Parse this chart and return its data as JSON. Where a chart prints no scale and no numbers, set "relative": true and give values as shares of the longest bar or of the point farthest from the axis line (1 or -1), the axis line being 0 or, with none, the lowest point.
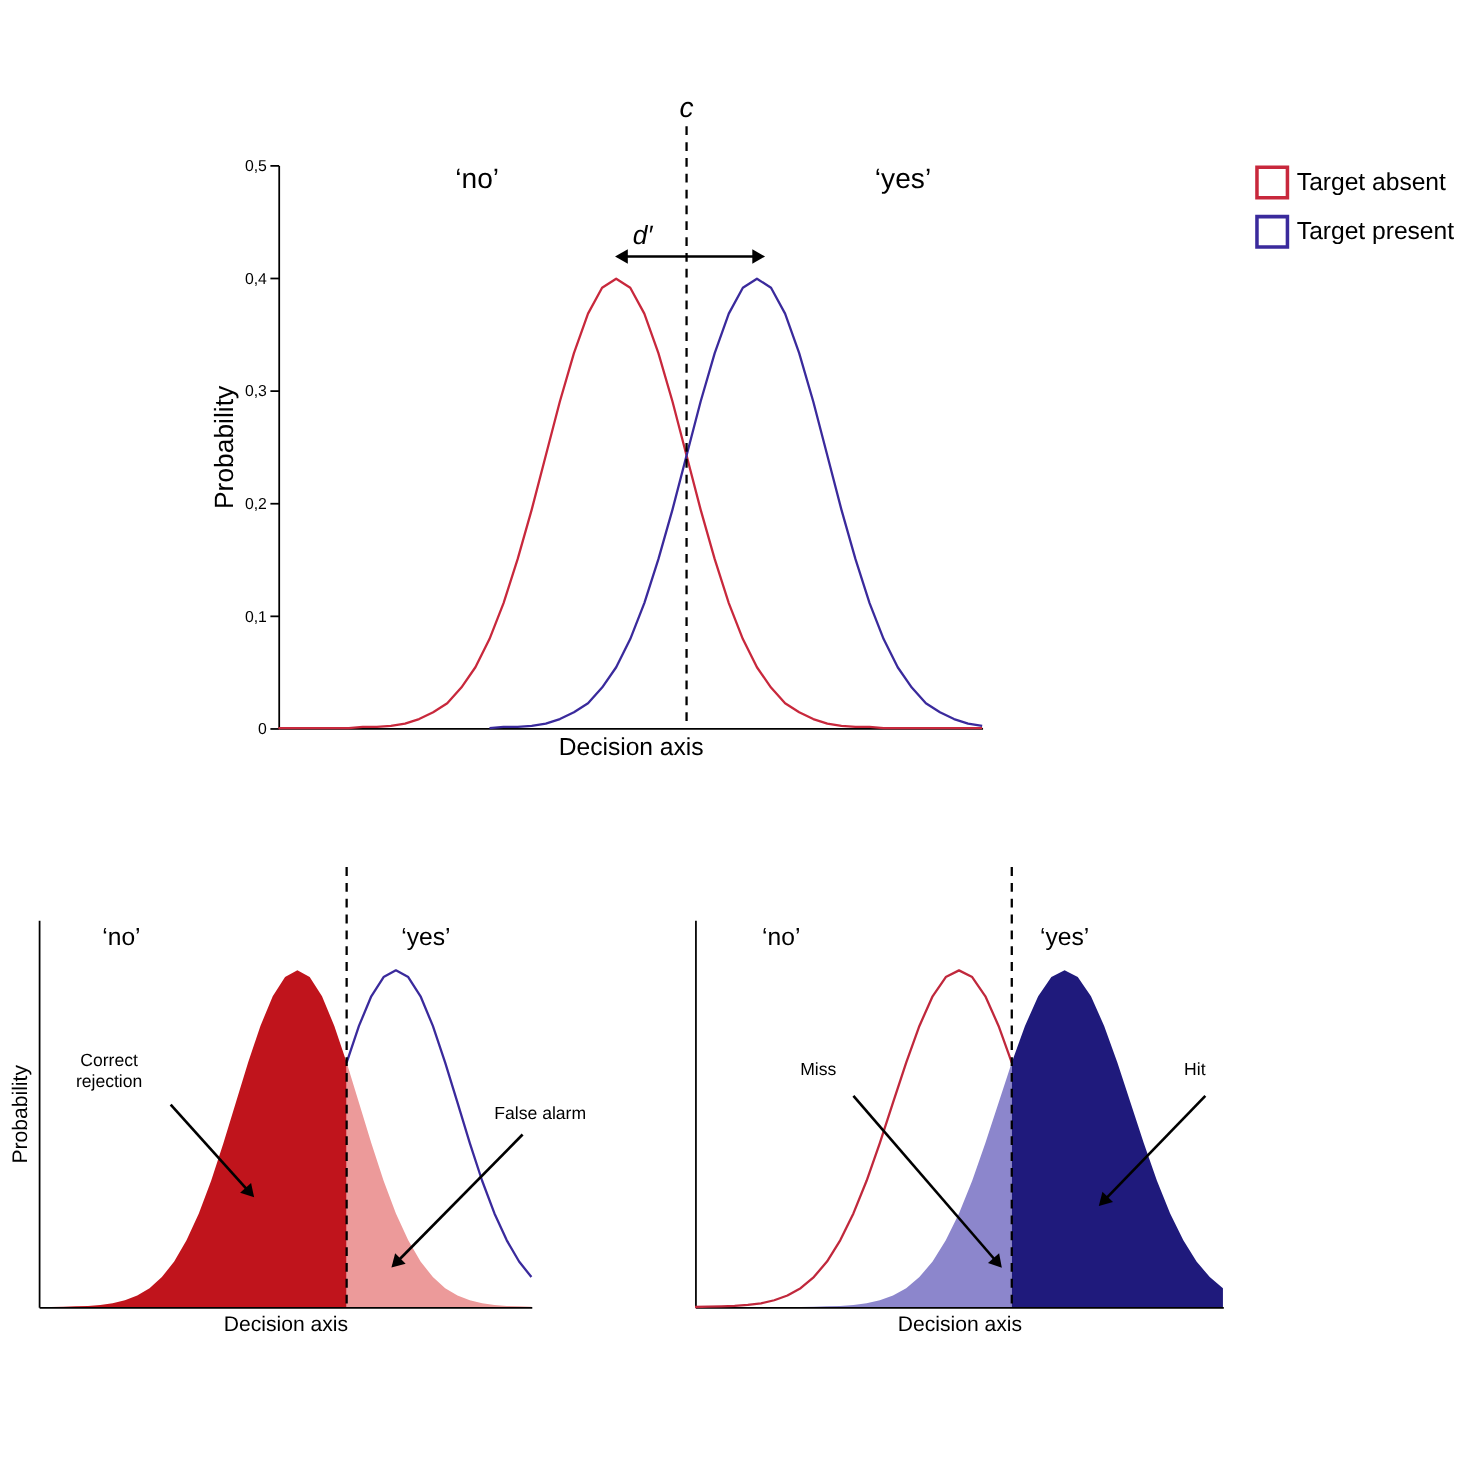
{
  "chart_data": [
    {
      "type": "line",
      "categories": [
        null,
        null,
        null,
        null,
        null,
        null,
        null,
        null,
        null,
        null,
        null,
        null,
        null,
        null,
        null,
        null,
        null,
        null,
        null,
        null,
        null,
        null,
        null,
        null,
        null,
        null,
        null,
        null,
        null,
        null,
        null,
        null,
        null,
        null,
        null,
        null,
        null,
        null,
        null,
        null,
        null,
        null,
        null,
        null,
        null,
        null,
        null,
        null,
        null,
        null,
        null
      ],
      "xlabel": "Decision axis",
      "ylabel": "Probability",
      "ylim": [
        0,
        0.5
      ],
      "yticks": [
        0,
        {
          "value": 0.1,
          "label": "0,1"
        },
        {
          "value": 0.2,
          "label": "0,2"
        },
        {
          "value": 0.3,
          "label": "0,3"
        },
        {
          "value": 0.4,
          "label": "0,4"
        },
        {
          "value": 0.5,
          "label": "0,5"
        }
      ],
      "grid": false,
      "legend": "right",
      "tick_labels": "y",
      "series": [
        {
          "name": "Target absent",
          "color": "#c8283c",
          "values": [
            0,
            0,
            0,
            0,
            0,
            0,
            0.001,
            0.001,
            0.002,
            0.004,
            0.008,
            0.014,
            0.022,
            0.036,
            0.054,
            0.079,
            0.111,
            0.15,
            0.194,
            0.242,
            0.29,
            0.333,
            0.368,
            0.391,
            0.399,
            0.391,
            0.368,
            0.333,
            0.29,
            0.242,
            0.194,
            0.15,
            0.111,
            0.079,
            0.054,
            0.036,
            0.022,
            0.014,
            0.008,
            0.004,
            0.002,
            0.001,
            0.001,
            0,
            0,
            0,
            0,
            0,
            0,
            0,
            0
          ]
        },
        {
          "name": "Target present",
          "color": "#3a2a9c",
          "values": [
            null,
            null,
            null,
            null,
            null,
            null,
            null,
            null,
            null,
            null,
            null,
            null,
            null,
            null,
            null,
            0,
            0.001,
            0.001,
            0.002,
            0.004,
            0.008,
            0.014,
            0.022,
            0.036,
            0.054,
            0.079,
            0.111,
            0.15,
            0.194,
            0.242,
            0.29,
            0.333,
            0.368,
            0.391,
            0.399,
            0.391,
            0.368,
            0.333,
            0.29,
            0.242,
            0.194,
            0.15,
            0.111,
            0.079,
            0.054,
            0.036,
            0.022,
            0.014,
            0.008,
            0.004,
            0.002
          ]
        }
      ],
      "annotations": [
        "‘no’",
        "‘yes’",
        "d′",
        "c"
      ]
    },
    {
      "type": "area",
      "relative": true,
      "categories": [
        null,
        null,
        null,
        null,
        null,
        null,
        null,
        null,
        null,
        null,
        null,
        null,
        null,
        null,
        null,
        null,
        null,
        null,
        null,
        null,
        null,
        null,
        null,
        null,
        null,
        null,
        null,
        null,
        null,
        null,
        null,
        null,
        null,
        null,
        null,
        null,
        null,
        null,
        null,
        null,
        null
      ],
      "xlabel": "Decision axis",
      "ylabel": "Probability",
      "grid": false,
      "tick_labels": false,
      "series": [
        {
          "color": "#c0141c",
          "values": [
            0,
            0,
            0.001,
            0.002,
            0.003,
            0.006,
            0.011,
            0.02,
            0.034,
            0.056,
            0.089,
            0.135,
            0.198,
            0.278,
            0.375,
            0.487,
            0.607,
            0.726,
            0.835,
            0.923,
            0.98,
            1,
            0.98,
            0.923,
            0.835,
            0.726,
            null,
            null,
            null,
            null,
            null,
            null,
            null,
            null,
            null,
            null,
            null,
            null,
            null,
            null,
            null
          ]
        },
        {
          "color": "#ec9a9a",
          "values": [
            null,
            null,
            null,
            null,
            null,
            null,
            null,
            null,
            null,
            null,
            null,
            null,
            null,
            null,
            null,
            null,
            null,
            null,
            null,
            null,
            null,
            null,
            null,
            null,
            null,
            0.726,
            0.607,
            0.487,
            0.375,
            0.278,
            0.198,
            0.135,
            0.089,
            0.056,
            0.034,
            0.02,
            0.011,
            0.006,
            0.003,
            0.002,
            0.001
          ]
        },
        {
          "type": "line",
          "color": "#3a2a9c",
          "values": [
            null,
            null,
            null,
            null,
            null,
            null,
            null,
            null,
            null,
            null,
            null,
            null,
            null,
            null,
            null,
            null,
            null,
            null,
            null,
            null,
            null,
            null,
            null,
            null,
            null,
            0.726,
            0.835,
            0.923,
            0.98,
            1,
            0.98,
            0.923,
            0.835,
            0.726,
            0.607,
            0.487,
            0.375,
            0.278,
            0.198,
            0.135,
            0.089
          ]
        }
      ],
      "annotations": [
        "‘no’",
        "‘yes’",
        "Correct rejection",
        "False alarm"
      ]
    },
    {
      "type": "area",
      "relative": true,
      "categories": [
        null,
        null,
        null,
        null,
        null,
        null,
        null,
        null,
        null,
        null,
        null,
        null,
        null,
        null,
        null,
        null,
        null,
        null,
        null,
        null,
        null,
        null,
        null,
        null,
        null,
        null,
        null,
        null,
        null,
        null,
        null,
        null,
        null,
        null,
        null,
        null,
        null,
        null,
        null,
        null,
        null
      ],
      "xlabel": "Decision axis",
      "grid": false,
      "tick_labels": false,
      "series": [
        {
          "type": "line",
          "color": "#c0283c",
          "values": [
            0,
            0.001,
            0.002,
            0.003,
            0.006,
            0.011,
            0.02,
            0.034,
            0.056,
            0.089,
            0.135,
            0.198,
            0.278,
            0.375,
            0.487,
            0.607,
            0.726,
            0.835,
            0.923,
            0.98,
            1,
            0.98,
            0.923,
            0.835,
            0.726,
            null,
            null,
            null,
            null,
            null,
            null,
            null,
            null,
            null,
            null,
            null,
            null,
            null,
            null,
            null,
            null
          ]
        },
        {
          "color": "#8c86cc",
          "values": [
            null,
            null,
            null,
            null,
            null,
            null,
            null,
            null,
            0,
            0.001,
            0.002,
            0.003,
            0.006,
            0.011,
            0.02,
            0.034,
            0.056,
            0.089,
            0.135,
            0.198,
            0.278,
            0.375,
            0.487,
            0.607,
            0.726,
            null,
            null,
            null,
            null,
            null,
            null,
            null,
            null,
            null,
            null,
            null,
            null,
            null,
            null,
            null,
            null
          ]
        },
        {
          "color": "#1f1a7c",
          "values": [
            null,
            null,
            null,
            null,
            null,
            null,
            null,
            null,
            null,
            null,
            null,
            null,
            null,
            null,
            null,
            null,
            null,
            null,
            null,
            null,
            null,
            null,
            null,
            null,
            0.726,
            0.835,
            0.923,
            0.98,
            1,
            0.98,
            0.923,
            0.835,
            0.726,
            0.607,
            0.487,
            0.375,
            0.278,
            0.198,
            0.135,
            0.089,
            0.056
          ]
        }
      ],
      "annotations": [
        "‘no’",
        "‘yes’",
        "Miss",
        "Hit"
      ]
    }
  ]
}
